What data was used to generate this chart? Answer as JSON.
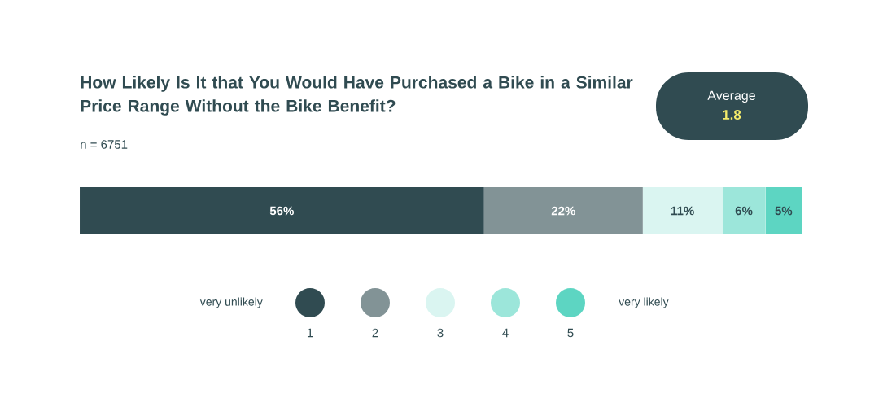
{
  "chart_data": {
    "type": "bar",
    "orientation": "horizontal",
    "stacked": true,
    "title": "How Likely Is It that You Would Have Purchased a Bike in a Similar Price Range Without the Bike Benefit?",
    "subtitle": "n = 6751",
    "categories": [
      null
    ],
    "series": [
      {
        "name": "1",
        "color": "#304b51",
        "values": [
          56
        ],
        "value_labels": [
          "56%"
        ]
      },
      {
        "name": "2",
        "color": "#829396",
        "values": [
          22
        ],
        "value_labels": [
          "22%"
        ]
      },
      {
        "name": "3",
        "color": "#daf5f1",
        "values": [
          11
        ],
        "value_labels": [
          "11%"
        ]
      },
      {
        "name": "4",
        "color": "#9ce6da",
        "values": [
          6
        ],
        "value_labels": [
          "6%"
        ]
      },
      {
        "name": "5",
        "color": "#5dd5c2",
        "values": [
          5
        ],
        "value_labels": [
          "5%"
        ]
      }
    ],
    "xlim": [
      0,
      100
    ],
    "tick_labels": false,
    "legend": "bottom",
    "annotations": [
      "very unlikely",
      "very likely",
      "Average",
      "1.8"
    ]
  }
}
